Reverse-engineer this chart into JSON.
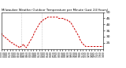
{
  "title": "Milwaukee Weather Outdoor Temperature per Minute (Last 24 Hours)",
  "bg_color": "#ffffff",
  "line_color": "#cc0000",
  "vline_color": "#aaaaaa",
  "spine_color": "#000000",
  "ylim": [
    20,
    50
  ],
  "yticks": [
    25,
    30,
    35,
    40,
    45,
    50
  ],
  "vline_x": [
    0.195,
    0.4
  ],
  "temp_data": [
    33,
    32,
    31,
    31,
    30,
    30,
    29,
    29,
    28,
    28,
    27,
    27,
    26,
    26,
    25,
    25,
    25,
    24,
    24,
    23,
    23,
    23,
    22,
    22,
    22,
    21,
    21,
    22,
    22,
    23,
    23,
    24,
    23,
    22,
    22,
    21,
    22,
    23,
    24,
    25,
    26,
    27,
    28,
    29,
    30,
    31,
    33,
    34,
    35,
    36,
    37,
    38,
    39,
    40,
    41,
    42,
    42,
    43,
    43,
    44,
    44,
    44,
    45,
    45,
    45,
    46,
    46,
    46,
    46,
    46,
    46,
    46,
    46,
    46,
    46,
    46,
    46,
    46,
    46,
    46,
    45,
    45,
    45,
    45,
    45,
    45,
    45,
    45,
    45,
    44,
    44,
    44,
    44,
    43,
    43,
    43,
    42,
    42,
    41,
    40,
    39,
    38,
    37,
    36,
    35,
    34,
    33,
    32,
    31,
    30,
    28,
    27,
    26,
    25,
    24,
    24,
    23,
    23,
    22,
    22,
    22,
    22,
    22,
    22,
    22,
    22,
    22,
    22,
    22,
    22,
    22,
    22,
    22,
    22,
    22,
    22,
    22,
    22,
    22,
    22,
    22,
    22,
    22,
    22
  ],
  "num_xticks": 36,
  "xtick_fontsize": 2.2,
  "ytick_fontsize": 3.2,
  "title_fontsize": 2.8,
  "linewidth": 0.7,
  "figsize": [
    1.6,
    0.87
  ],
  "dpi": 100
}
